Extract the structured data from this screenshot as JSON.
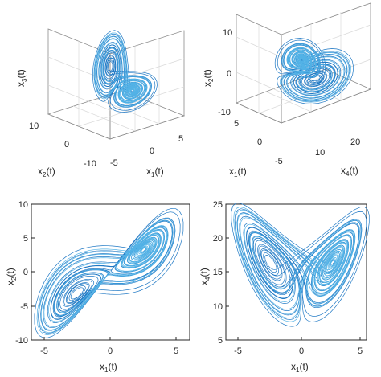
{
  "colors": {
    "trajectory": "#1f78c4",
    "trajectory_light": "#52b2e6",
    "axis": "#262626"
  },
  "chart_data": [
    {
      "type": "line",
      "projection": "3d",
      "xlabel": "x1(t)",
      "ylabel": "x2(t)",
      "zlabel": "x3(t)",
      "x_ticks": [
        "-5",
        "0",
        "5"
      ],
      "y_ticks": [
        "-10",
        "0",
        "10"
      ],
      "xlim": [
        -6,
        6
      ],
      "ylim": [
        -10,
        10
      ],
      "zlim": [
        0,
        24
      ],
      "grid": true,
      "series": [
        {
          "values": "trajectory (x1, x2, x3)"
        }
      ]
    },
    {
      "type": "line",
      "projection": "3d",
      "xlabel": "x1(t)",
      "ylabel": "x2(t)",
      "zlabel": "x4(t)",
      "y_ticks_vertical": [
        "-10",
        "0",
        "10"
      ],
      "x_ticks": [
        "-5",
        "0",
        "5"
      ],
      "z_ticks": [
        "10",
        "20"
      ],
      "xlim": [
        -6,
        6
      ],
      "ylim": [
        -10,
        10
      ],
      "zlim": [
        6,
        24
      ],
      "grid": true,
      "series": [
        {
          "values": "trajectory (x1, x4, x2)"
        }
      ]
    },
    {
      "type": "line",
      "xlabel": "x1(t)",
      "ylabel": "x2(t)",
      "x_ticks": [
        "-5",
        "0",
        "5"
      ],
      "y_ticks": [
        "-10",
        "-5",
        "0",
        "5",
        "10"
      ],
      "xlim": [
        -6,
        6
      ],
      "ylim": [
        -10,
        10
      ],
      "grid": false
    },
    {
      "type": "line",
      "xlabel": "x1(t)",
      "ylabel": "x4(t)",
      "x_ticks": [
        "-5",
        "0",
        "5"
      ],
      "y_ticks": [
        "5",
        "10",
        "15",
        "20",
        "25"
      ],
      "xlim": [
        -6,
        6
      ],
      "ylim": [
        5,
        25
      ],
      "grid": false
    }
  ]
}
